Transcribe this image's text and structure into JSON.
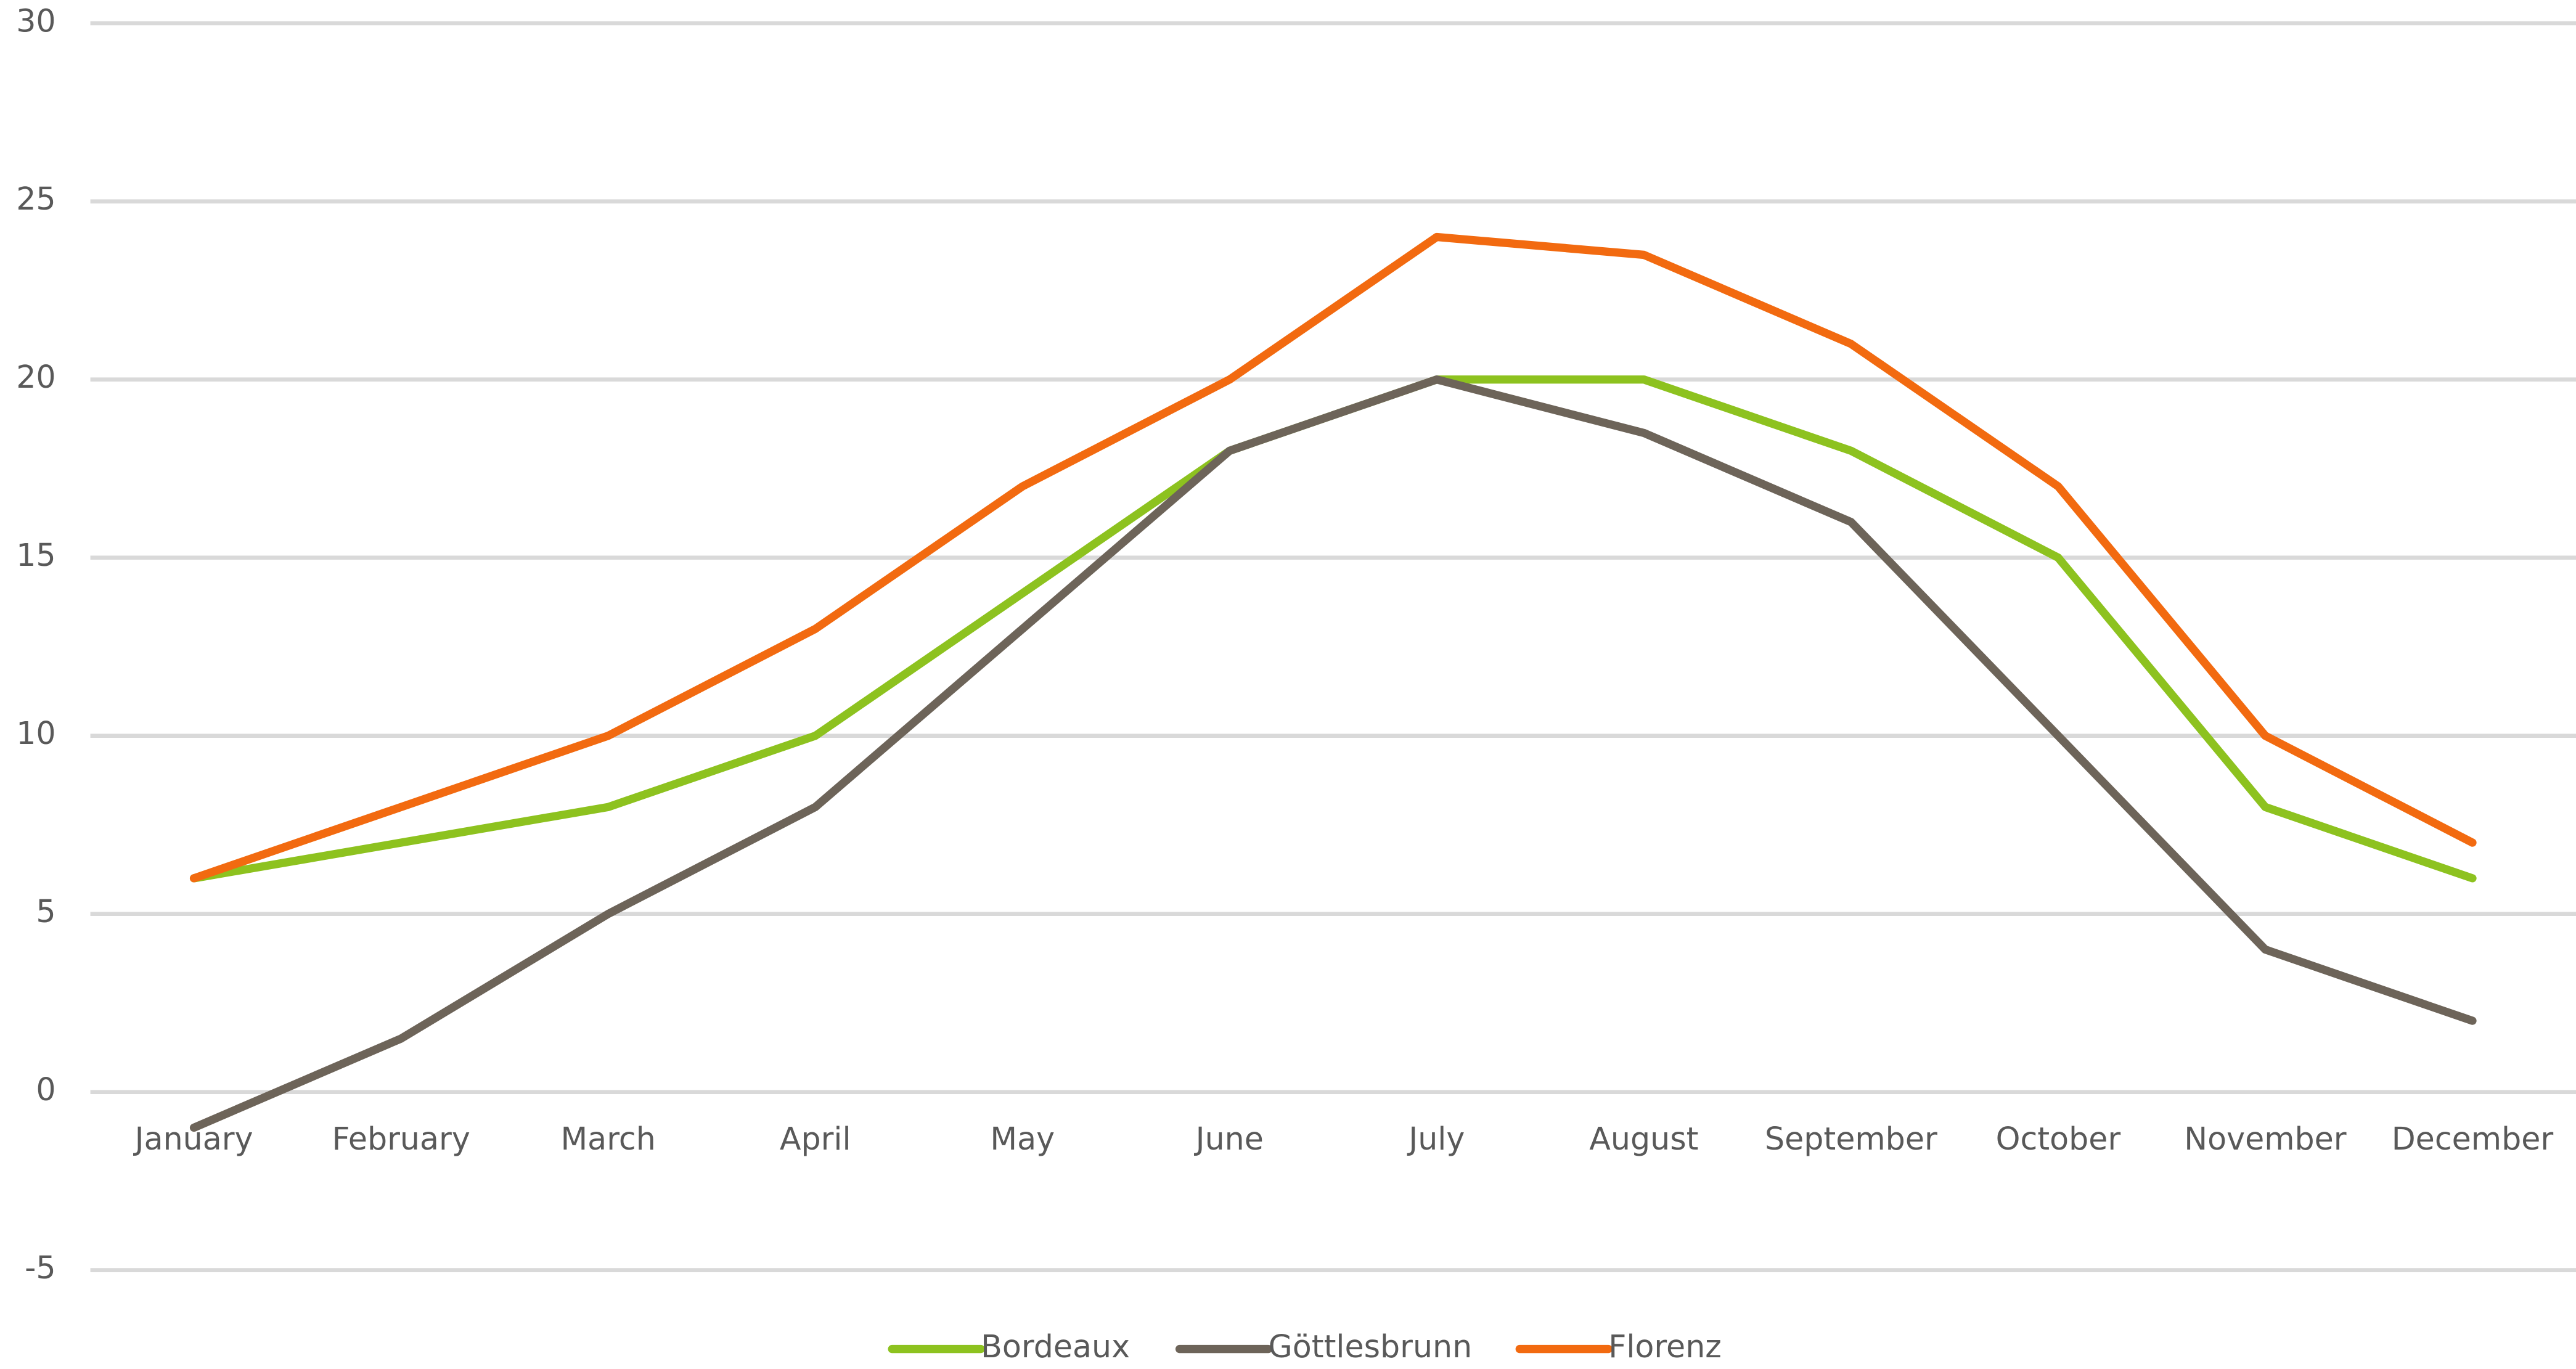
{
  "chart_data": {
    "type": "line",
    "categories": [
      "January",
      "February",
      "March",
      "April",
      "May",
      "June",
      "July",
      "August",
      "September",
      "October",
      "November",
      "December"
    ],
    "series": [
      {
        "name": "Bordeaux",
        "color": "#8dc21f",
        "values": [
          6,
          7,
          8,
          10,
          14,
          18,
          20,
          20,
          18,
          15,
          8,
          6
        ]
      },
      {
        "name": "Göttlesbrunn",
        "color": "#6d6459",
        "values": [
          -1,
          1.5,
          5,
          8,
          13,
          18,
          20,
          18.5,
          16,
          10,
          4,
          2
        ]
      },
      {
        "name": "Florenz",
        "color": "#f26a10",
        "values": [
          6,
          8,
          10,
          13,
          17,
          20,
          24,
          23.5,
          21,
          17,
          10,
          7
        ]
      }
    ],
    "ylim": [
      -5,
      30
    ],
    "yticks": [
      -5,
      0,
      5,
      10,
      15,
      20,
      25,
      30
    ],
    "grid": true,
    "legend": "bottom"
  }
}
